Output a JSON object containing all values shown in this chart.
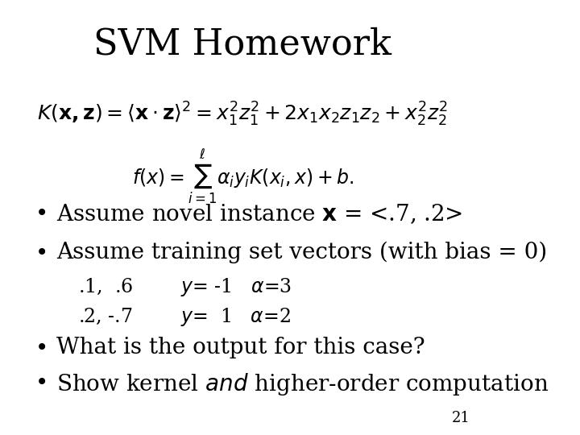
{
  "title": "SVM Homework",
  "title_fontsize": 32,
  "background_color": "#ffffff",
  "text_color": "#000000",
  "page_number": "21",
  "formula1": "$K(\\mathbf{x,z}) = \\langle \\mathbf{x} \\cdot \\mathbf{z} \\rangle^2 = x_1^2 z_1^2 + 2x_1 x_2 z_1 z_2 + x_2^2 z_2^2$",
  "formula2": "$f(x) = \\sum_{i=1}^{\\ell} \\alpha_i y_i K(x_i, x) + b.$",
  "bullet1": "Assume novel instance $\\mathbf{x}$ = <.7, .2>",
  "bullet2": "Assume training set vectors (with bias = 0)",
  "sub1": ".1,  .6        $y$= -1   $\\alpha$=3",
  "sub2": ".2, -.7        $y$=  1   $\\alpha$=2",
  "bullet3": "What is the output for this case?",
  "bullet4": "Show kernel $\\it{and}$ higher-order computation",
  "bullet_fontsize": 20,
  "sub_fontsize": 17,
  "formula_fontsize": 18
}
